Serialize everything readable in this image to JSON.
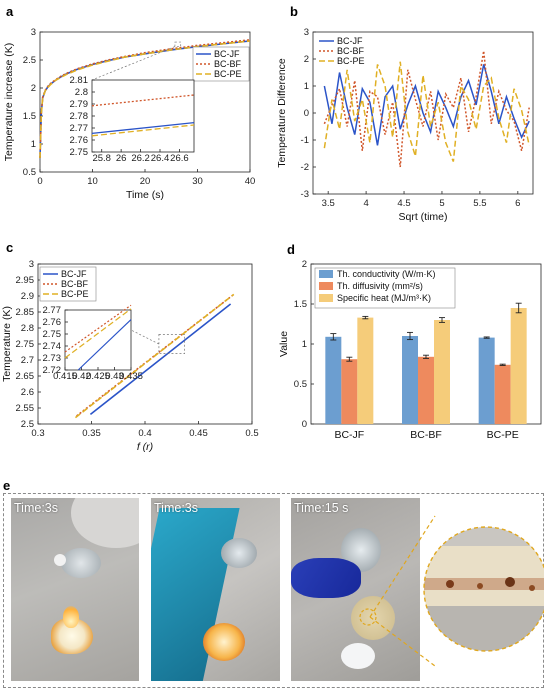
{
  "colors": {
    "jf": "#2b54c8",
    "bf": "#d0562a",
    "pe": "#e0b024",
    "bf_bar": "#ee8a5e",
    "pe_bar": "#f5cc7a",
    "jf_bar": "#6c9ed0"
  },
  "panel_e": {
    "letter": "e",
    "photos": [
      {
        "label": "Time:3s"
      },
      {
        "label": "Time:3s"
      },
      {
        "label": "Time:15 s"
      }
    ]
  },
  "chart_data": [
    {
      "panel": "a",
      "type": "line",
      "xlabel": "Time (s)",
      "ylabel": "Temperature increase (K)",
      "xlim": [
        0,
        40
      ],
      "ylim": [
        0.5,
        3
      ],
      "xticks": [
        0,
        10,
        20,
        30,
        40
      ],
      "yticks": [
        0.5,
        1,
        1.5,
        2,
        2.5,
        3
      ],
      "grid": false,
      "legend": "top-right",
      "x": [
        0,
        0.25,
        0.5,
        1,
        1.5,
        2,
        3,
        4,
        5,
        7,
        10,
        13,
        16,
        20,
        25,
        30,
        35,
        40
      ],
      "series": [
        {
          "name": "BC-JF",
          "values": [
            0.75,
            1.55,
            1.82,
            1.95,
            2.02,
            2.07,
            2.14,
            2.2,
            2.25,
            2.33,
            2.42,
            2.49,
            2.55,
            2.61,
            2.68,
            2.74,
            2.79,
            2.84
          ]
        },
        {
          "name": "BC-BF",
          "values": [
            0.75,
            1.56,
            1.83,
            1.96,
            2.03,
            2.08,
            2.15,
            2.21,
            2.26,
            2.34,
            2.43,
            2.5,
            2.56,
            2.63,
            2.7,
            2.76,
            2.81,
            2.86
          ]
        },
        {
          "name": "BC-PE",
          "values": [
            0.75,
            1.54,
            1.81,
            1.95,
            2.01,
            2.06,
            2.14,
            2.19,
            2.24,
            2.32,
            2.41,
            2.48,
            2.55,
            2.61,
            2.68,
            2.74,
            2.79,
            2.84
          ]
        }
      ],
      "inset": {
        "xlim": [
          25.7,
          26.75
        ],
        "ylim": [
          2.75,
          2.81
        ],
        "xticks": [
          25.8,
          26,
          26.2,
          26.4,
          26.6
        ],
        "yticks": [
          2.75,
          2.76,
          2.77,
          2.78,
          2.79,
          2.8,
          2.81
        ],
        "x": [
          25.7,
          26.75
        ],
        "series": [
          {
            "name": "BC-JF",
            "values": [
              2.7655,
              2.7745
            ]
          },
          {
            "name": "BC-BF",
            "values": [
              2.7885,
              2.7975
            ]
          },
          {
            "name": "BC-PE",
            "values": [
              2.7635,
              2.7725
            ]
          }
        ]
      }
    },
    {
      "panel": "b",
      "type": "line",
      "xlabel": "Sqrt (time)",
      "ylabel": "Temperature Difference",
      "xlim": [
        3.3,
        6.2
      ],
      "ylim": [
        -3,
        3
      ],
      "xticks": [
        3.5,
        4,
        4.5,
        5,
        5.5,
        6
      ],
      "yticks": [
        -3,
        -2,
        -1,
        0,
        1,
        2,
        3
      ],
      "grid": false,
      "legend": "top-left",
      "x": [
        3.45,
        3.55,
        3.65,
        3.75,
        3.85,
        3.95,
        4.05,
        4.15,
        4.25,
        4.35,
        4.45,
        4.55,
        4.65,
        4.75,
        4.85,
        4.95,
        5.05,
        5.15,
        5.25,
        5.35,
        5.45,
        5.55,
        5.65,
        5.75,
        5.85,
        5.95,
        6.05,
        6.15
      ],
      "series": [
        {
          "name": "BC-JF",
          "values": [
            1.0,
            -0.4,
            1.5,
            0.2,
            -0.8,
            0.9,
            0.4,
            -1.2,
            0.6,
            1.0,
            -0.6,
            0.3,
            1.0,
            0.0,
            -0.7,
            0.8,
            0.2,
            -0.5,
            0.6,
            1.2,
            0.3,
            1.8,
            0.8,
            -0.4,
            0.6,
            -0.2,
            -0.9,
            -0.3
          ]
        },
        {
          "name": "BC-BF",
          "values": [
            -0.4,
            0.3,
            0.9,
            -0.5,
            1.2,
            -1.4,
            0.8,
            0.6,
            -0.8,
            0.4,
            -2.0,
            1.6,
            0.5,
            -0.5,
            0.8,
            -1.0,
            0.7,
            0.2,
            1.3,
            -0.7,
            0.6,
            2.3,
            -0.4,
            0.8,
            0.1,
            -0.3,
            -1.4,
            0.2
          ]
        },
        {
          "name": "BC-PE",
          "values": [
            -1.3,
            0.5,
            -0.6,
            1.6,
            -0.3,
            0.5,
            -1.1,
            1.8,
            1.0,
            -0.9,
            1.9,
            -0.7,
            -1.6,
            1.4,
            -0.5,
            0.4,
            -1.1,
            -1.8,
            1.0,
            0.5,
            -0.6,
            1.0,
            1.3,
            -0.2,
            -1.1,
            0.9,
            0.1,
            -1.2
          ]
        }
      ]
    },
    {
      "panel": "c",
      "type": "line",
      "xlabel": "f (r)",
      "ylabel": "Temperature (K)",
      "xlim": [
        0.3,
        0.5
      ],
      "ylim": [
        2.5,
        3
      ],
      "xticks": [
        0.3,
        0.35,
        0.4,
        0.45,
        0.5
      ],
      "yticks": [
        2.5,
        2.55,
        2.6,
        2.65,
        2.7,
        2.75,
        2.8,
        2.85,
        2.9,
        2.95,
        3
      ],
      "grid": false,
      "legend": "top-left",
      "series": [
        {
          "name": "BC-JF",
          "x": [
            0.349,
            0.48
          ],
          "values": [
            2.53,
            2.875
          ]
        },
        {
          "name": "BC-BF",
          "x": [
            0.336,
            0.483
          ],
          "values": [
            2.525,
            2.905
          ]
        },
        {
          "name": "BC-PE",
          "x": [
            0.335,
            0.483
          ],
          "values": [
            2.52,
            2.905
          ]
        }
      ],
      "inset": {
        "xlim": [
          0.415,
          0.435
        ],
        "ylim": [
          2.72,
          2.77
        ],
        "xticks": [
          0.415,
          0.42,
          0.425,
          0.43,
          0.435
        ],
        "yticks": [
          2.72,
          2.73,
          2.74,
          2.75,
          2.76,
          2.77
        ],
        "series": [
          {
            "name": "BC-JF",
            "x": [
              0.419,
              0.435
            ],
            "values": [
              2.72,
              2.762
            ]
          },
          {
            "name": "BC-BF",
            "x": [
              0.415,
              0.435
            ],
            "values": [
              2.735,
              2.774
            ]
          },
          {
            "name": "BC-PE",
            "x": [
              0.415,
              0.435
            ],
            "values": [
              2.73,
              2.771
            ]
          }
        ]
      }
    },
    {
      "panel": "d",
      "type": "bar",
      "xlabel": "",
      "ylabel": "Value",
      "ylim": [
        0,
        2
      ],
      "yticks": [
        0,
        0.5,
        1,
        1.5,
        2
      ],
      "grid": false,
      "legend": "top-left",
      "categories": [
        "BC-JF",
        "BC-BF",
        "BC-PE"
      ],
      "series": [
        {
          "name": "Th. conductivity (W/m·K)",
          "values": [
            1.09,
            1.1,
            1.08
          ],
          "errors": [
            0.04,
            0.045,
            0.008
          ]
        },
        {
          "name": "Th. diffusivity (mm²/s)",
          "values": [
            0.81,
            0.84,
            0.74
          ],
          "errors": [
            0.025,
            0.02,
            0.008
          ]
        },
        {
          "name": "Specific heat (MJ/m³·K)",
          "values": [
            1.33,
            1.3,
            1.45
          ],
          "errors": [
            0.015,
            0.03,
            0.06
          ]
        }
      ]
    }
  ]
}
